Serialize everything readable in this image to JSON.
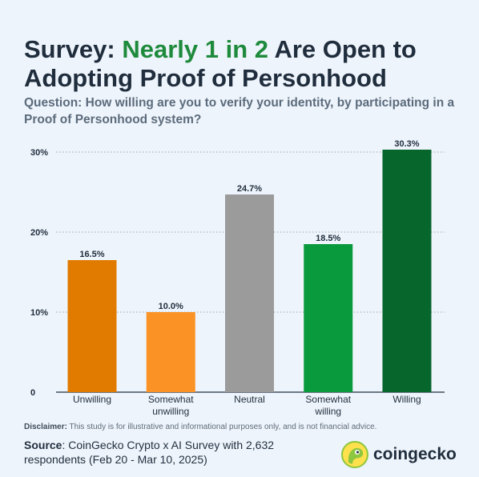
{
  "header": {
    "title_prefix": "Survey: ",
    "title_highlight": "Nearly 1 in 2",
    "title_suffix": " Are Open to Adopting Proof of Personhood",
    "subtitle": "Question: How willing are you to verify your identity, by participating in a Proof of Personhood system?"
  },
  "chart_data": {
    "type": "bar",
    "categories": [
      "Unwilling",
      "Somewhat unwilling",
      "Neutral",
      "Somewhat willing",
      "Willing"
    ],
    "values": [
      16.5,
      10.0,
      24.7,
      18.5,
      30.3
    ],
    "value_labels": [
      "16.5%",
      "10.0%",
      "24.7%",
      "18.5%",
      "30.3%"
    ],
    "colors": [
      "#e07b00",
      "#fb9225",
      "#9b9b9b",
      "#0a9a3e",
      "#07662c"
    ],
    "title": "",
    "xlabel": "",
    "ylabel": "",
    "ylim": [
      0,
      30
    ],
    "yticks": [
      0,
      10,
      20,
      30
    ],
    "ytick_labels": [
      "0",
      "10%",
      "20%",
      "30%"
    ],
    "grid": true,
    "legend": "none"
  },
  "footer": {
    "disclaimer_label": "Disclaimer:",
    "disclaimer_text": " This study is for illustrative and informational purposes only, and is not financial advice.",
    "source_label": "Source",
    "source_text": ": CoinGecko Crypto x AI Survey with 2,632 respondents (Feb 20 - Mar 10, 2025)"
  },
  "logo": {
    "text": "coingecko",
    "icon": "gecko-logo-icon",
    "colors": {
      "ring": "#8dc63f",
      "fill": "#ffe14d",
      "eye": "#1f2d3d"
    }
  }
}
